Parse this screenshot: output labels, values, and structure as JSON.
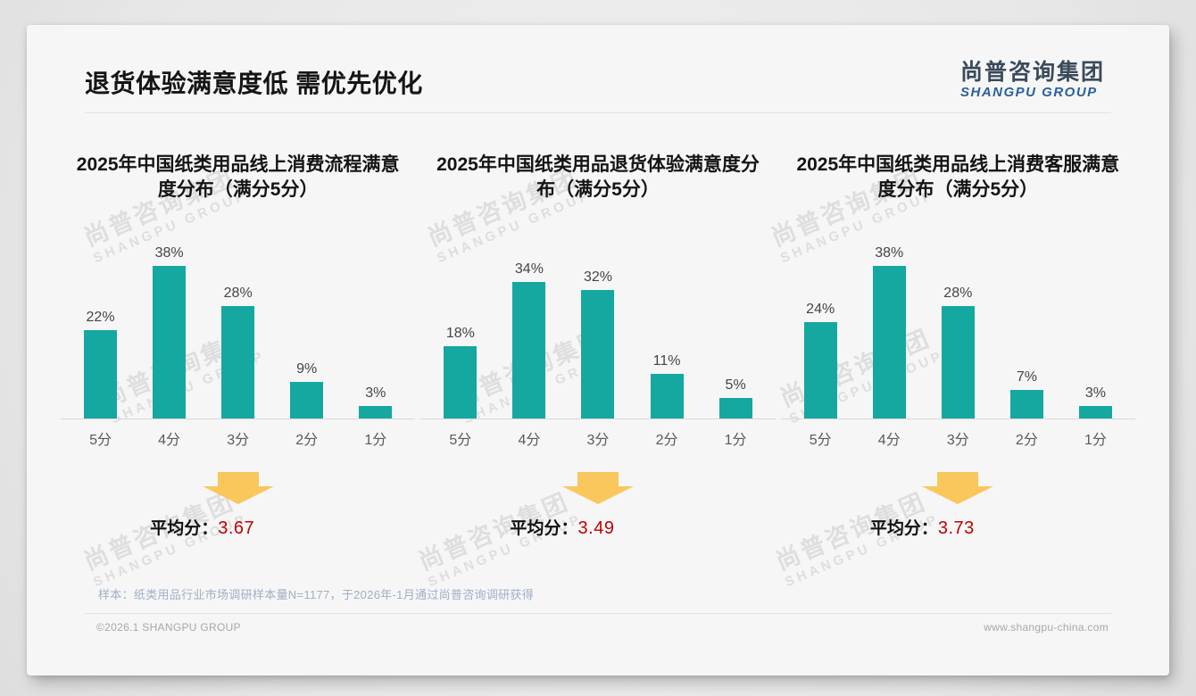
{
  "slide": {
    "title": "退货体验满意度低 需优先优化",
    "logo": {
      "cn": "尚普咨询集团",
      "en": "SHANGPU GROUP"
    },
    "watermark": {
      "cn": "尚普咨询集团",
      "en": "SHANGPU GROUP"
    },
    "average_label": "平均分：",
    "note": "样本：纸类用品行业市场调研样本量N=1177，于2026年-1月通过尚普咨询调研获得",
    "copyright": "©2026.1 SHANGPU GROUP",
    "website": "www.shangpu-china.com"
  },
  "colors": {
    "bar": "#14A8A0",
    "arrow": "#F9C75C",
    "average_value": "#C00000",
    "logo_cn": "#3A4A5B",
    "logo_en": "#2A5F9E"
  },
  "chart_data": [
    {
      "type": "bar",
      "title": "2025年中国纸类用品线上消费流程满意度分布（满分5分）",
      "categories": [
        "5分",
        "4分",
        "3分",
        "2分",
        "1分"
      ],
      "values": [
        22,
        38,
        28,
        9,
        3
      ],
      "unit": "%",
      "ylim": [
        0,
        40
      ],
      "grid": false,
      "average": "3.67"
    },
    {
      "type": "bar",
      "title": "2025年中国纸类用品退货体验满意度分布（满分5分）",
      "categories": [
        "5分",
        "4分",
        "3分",
        "2分",
        "1分"
      ],
      "values": [
        18,
        34,
        32,
        11,
        5
      ],
      "unit": "%",
      "ylim": [
        0,
        40
      ],
      "grid": false,
      "average": "3.49"
    },
    {
      "type": "bar",
      "title": "2025年中国纸类用品线上消费客服满意度分布（满分5分）",
      "categories": [
        "5分",
        "4分",
        "3分",
        "2分",
        "1分"
      ],
      "values": [
        24,
        38,
        28,
        7,
        3
      ],
      "unit": "%",
      "ylim": [
        0,
        40
      ],
      "grid": false,
      "average": "3.73"
    }
  ]
}
